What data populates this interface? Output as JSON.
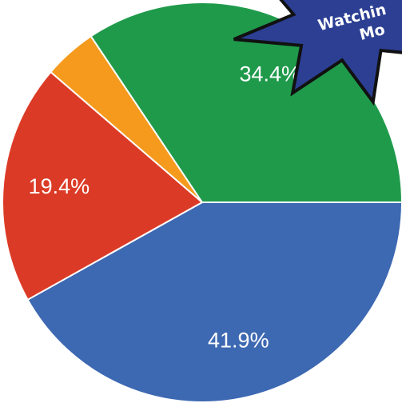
{
  "chart_data": {
    "type": "pie",
    "values": [
      41.9,
      19.4,
      4.3,
      34.4
    ],
    "value_labels": [
      "41.9%",
      "19.4%",
      null,
      "34.4%"
    ],
    "colors": [
      "#3d68b2",
      "#db3b26",
      "#f59a1d",
      "#1f9a4b"
    ],
    "annotation": [
      "Watchin",
      "Mo"
    ]
  }
}
